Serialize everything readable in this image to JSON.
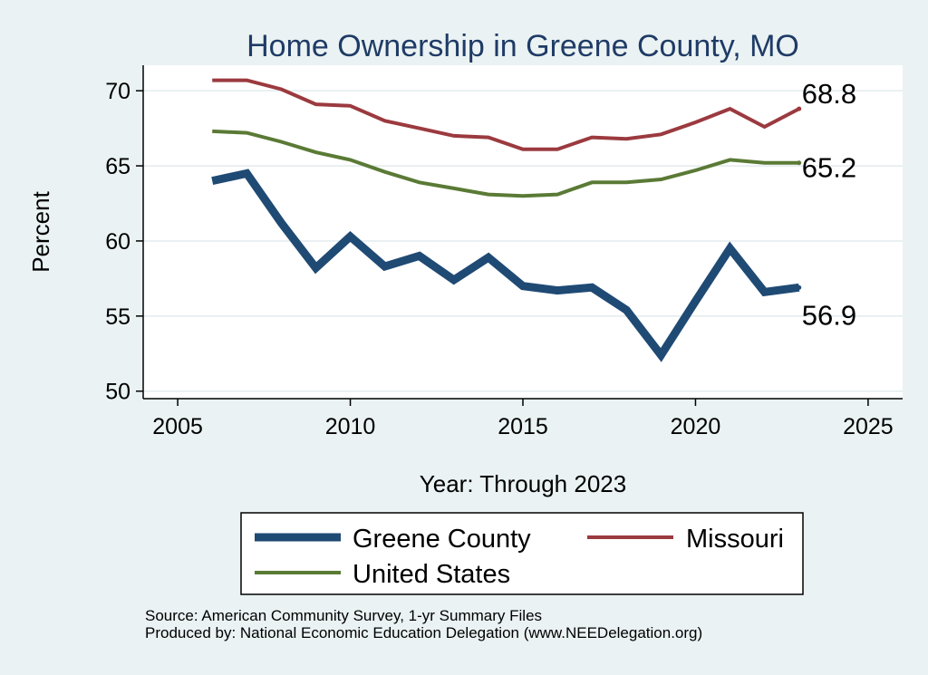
{
  "chart_data": {
    "type": "line",
    "title": "Home Ownership in Greene County, MO",
    "xlabel": "Year: Through 2023",
    "ylabel": "Percent",
    "xlim": [
      2004,
      2026
    ],
    "ylim": [
      49.5,
      71.7
    ],
    "x_ticks": [
      2005,
      2010,
      2015,
      2020,
      2025
    ],
    "y_ticks": [
      50,
      55,
      60,
      65,
      70
    ],
    "grid": true,
    "series": [
      {
        "key": "greene",
        "name": "Greene County",
        "color": "#1f4a74",
        "x": [
          2006,
          2007,
          2008,
          2009,
          2010,
          2011,
          2012,
          2013,
          2014,
          2015,
          2016,
          2017,
          2018,
          2019,
          2020,
          2021,
          2022,
          2023
        ],
        "values": [
          64.0,
          64.5,
          61.2,
          58.2,
          60.3,
          58.3,
          59.0,
          57.4,
          58.9,
          57.0,
          56.7,
          56.9,
          55.4,
          52.4,
          56.0,
          59.5,
          56.6,
          56.9
        ],
        "end_label": "56.9"
      },
      {
        "key": "missouri",
        "name": "Missouri",
        "color": "#9b3a3f",
        "x": [
          2006,
          2007,
          2008,
          2009,
          2010,
          2011,
          2012,
          2013,
          2014,
          2015,
          2016,
          2017,
          2018,
          2019,
          2020,
          2021,
          2022,
          2023
        ],
        "values": [
          70.7,
          70.7,
          70.1,
          69.1,
          69.0,
          68.0,
          67.5,
          67.0,
          66.9,
          66.1,
          66.1,
          66.9,
          66.8,
          67.1,
          67.9,
          68.8,
          67.6,
          68.8
        ],
        "end_label": "68.8"
      },
      {
        "key": "us",
        "name": "United States",
        "color": "#5a7a35",
        "x": [
          2006,
          2007,
          2008,
          2009,
          2010,
          2011,
          2012,
          2013,
          2014,
          2015,
          2016,
          2017,
          2018,
          2019,
          2020,
          2021,
          2022,
          2023
        ],
        "values": [
          67.3,
          67.2,
          66.6,
          65.9,
          65.4,
          64.6,
          63.9,
          63.5,
          63.1,
          63.0,
          63.1,
          63.9,
          63.9,
          64.1,
          64.7,
          65.4,
          65.2,
          65.2
        ],
        "end_label": "65.2"
      }
    ],
    "legend": {
      "placement": "bottom",
      "entries": [
        "Greene County",
        "Missouri",
        "United States"
      ]
    }
  },
  "source_line": "Source: American Community Survey, 1-yr Summary Files",
  "produced_line": "Produced by: National Economic Education Delegation (www.NEEDelegation.org)"
}
